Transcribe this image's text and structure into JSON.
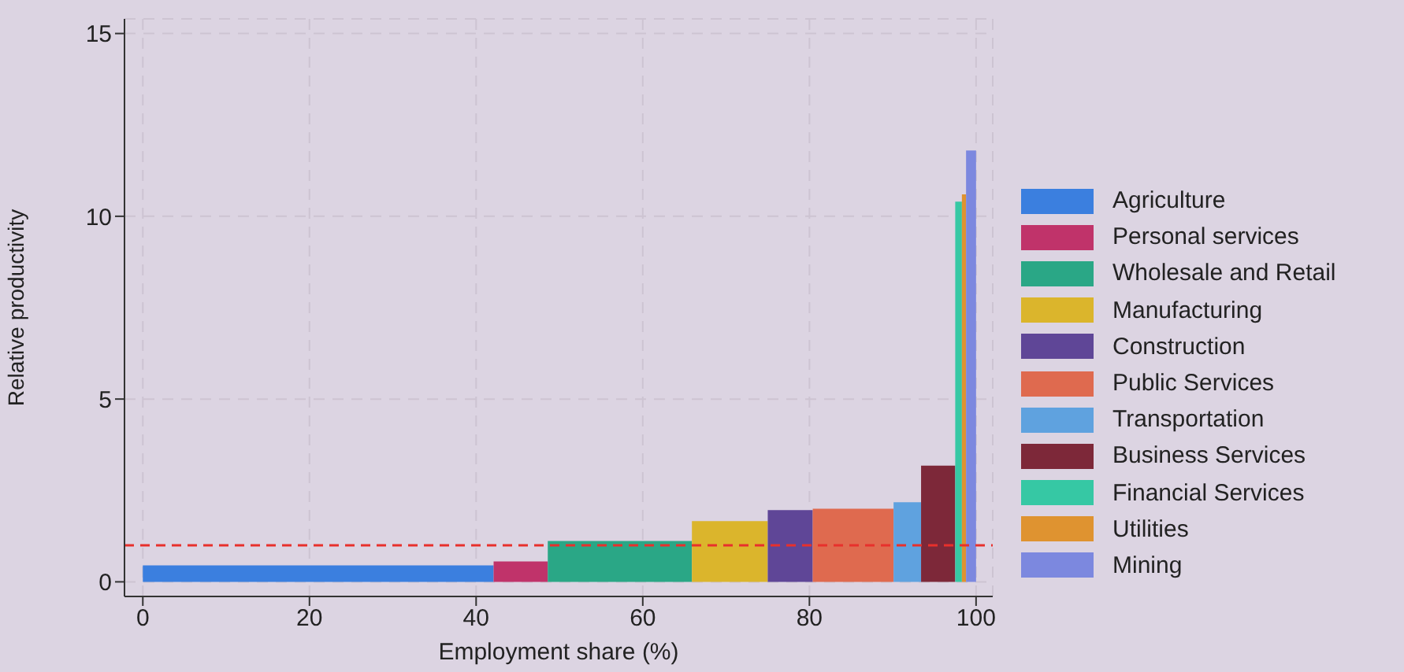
{
  "chart_data": {
    "type": "histogram",
    "xlabel": "Employment share (%)",
    "ylabel": "Relative productivity",
    "xlim": [
      -2.2,
      102
    ],
    "xticks": [
      0,
      20,
      40,
      60,
      80,
      100
    ],
    "ylim": [
      -0.4,
      15.4
    ],
    "yticks": [
      0,
      5,
      10,
      15
    ],
    "grid": true,
    "legend": "right",
    "ref_lines": [
      {
        "axis": "y",
        "value": 1,
        "color": "#e8302c",
        "line_style": "dashed"
      }
    ],
    "bins": [
      0,
      42.1,
      48.6,
      65.9,
      75,
      80.4,
      90.1,
      93.4,
      97.5,
      98.3,
      98.8,
      100
    ],
    "series": [
      {
        "name": "Agriculture",
        "color": "#3b7fdf",
        "values": [
          0.45,
          null,
          null,
          null,
          null,
          null,
          null,
          null,
          null,
          null,
          null
        ]
      },
      {
        "name": "Personal services",
        "color": "#c0336a",
        "values": [
          null,
          0.56,
          null,
          null,
          null,
          null,
          null,
          null,
          null,
          null,
          null
        ]
      },
      {
        "name": "Wholesale and Retail",
        "color": "#2aa786",
        "values": [
          null,
          null,
          1.12,
          null,
          null,
          null,
          null,
          null,
          null,
          null,
          null
        ]
      },
      {
        "name": "Manufacturing",
        "color": "#dbb52c",
        "values": [
          null,
          null,
          null,
          1.66,
          null,
          null,
          null,
          null,
          null,
          null,
          null
        ]
      },
      {
        "name": "Construction",
        "color": "#5f4697",
        "values": [
          null,
          null,
          null,
          null,
          1.96,
          null,
          null,
          null,
          null,
          null,
          null
        ]
      },
      {
        "name": "Public Services",
        "color": "#df6a4f",
        "values": [
          null,
          null,
          null,
          null,
          null,
          2.0,
          null,
          null,
          null,
          null,
          null
        ]
      },
      {
        "name": "Transportation",
        "color": "#5fa2df",
        "values": [
          null,
          null,
          null,
          null,
          null,
          null,
          2.18,
          null,
          null,
          null,
          null
        ]
      },
      {
        "name": "Business Services",
        "color": "#7d2839",
        "values": [
          null,
          null,
          null,
          null,
          null,
          null,
          null,
          3.18,
          null,
          null,
          null
        ]
      },
      {
        "name": "Financial Services",
        "color": "#36c8a4",
        "values": [
          null,
          null,
          null,
          null,
          null,
          null,
          null,
          null,
          10.4,
          null,
          null
        ]
      },
      {
        "name": "Utilities",
        "color": "#df9330",
        "values": [
          null,
          null,
          null,
          null,
          null,
          null,
          null,
          null,
          null,
          10.6,
          null
        ]
      },
      {
        "name": "Mining",
        "color": "#7c88df",
        "values": [
          null,
          null,
          null,
          null,
          null,
          null,
          null,
          null,
          null,
          null,
          11.8
        ]
      }
    ]
  }
}
